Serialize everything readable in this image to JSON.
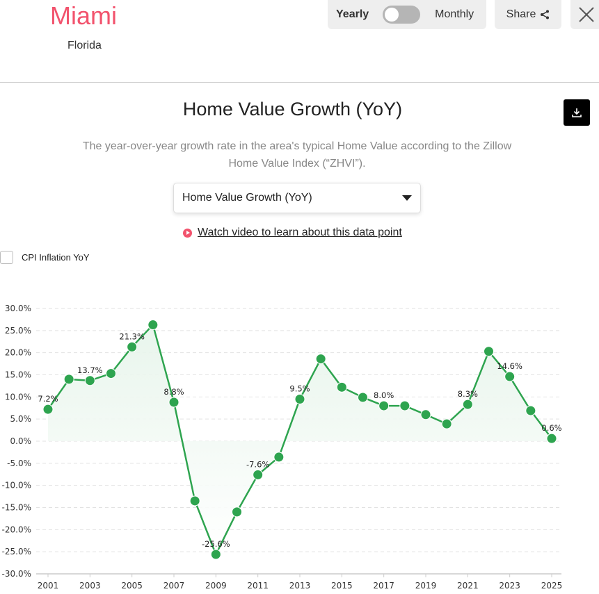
{
  "header": {
    "city": "Miami",
    "state": "Florida",
    "toggle_left": "Yearly",
    "toggle_right": "Monthly",
    "toggle_state": "yearly",
    "share_label": "Share",
    "close_icon": "close-icon",
    "share_icon": "share-icon"
  },
  "section": {
    "title": "Home Value Growth (YoY)",
    "description": "The year-over-year growth rate in the area's typical Home Value according to the Zillow Home Value Index (“ZHVI”).",
    "select_value": "Home Value Growth (YoY)",
    "video_link": "Watch video to learn about this data point",
    "cpi_label": "CPI Inflation YoY",
    "cpi_checked": false,
    "download_icon": "download-icon"
  },
  "colors": {
    "brand": "#f2536d",
    "line": "#2ea44f",
    "fill": "#e6f4ea"
  },
  "chart_data": {
    "type": "area",
    "x": [
      2001,
      2002,
      2003,
      2004,
      2005,
      2006,
      2007,
      2008,
      2009,
      2010,
      2011,
      2012,
      2013,
      2014,
      2015,
      2016,
      2017,
      2018,
      2019,
      2020,
      2021,
      2022,
      2023,
      2024,
      2025
    ],
    "values": [
      7.2,
      14.0,
      13.7,
      15.3,
      21.3,
      26.3,
      8.8,
      -13.5,
      -25.6,
      -16.0,
      -7.6,
      -3.6,
      9.5,
      18.6,
      12.2,
      9.9,
      8.0,
      8.0,
      6.0,
      3.9,
      8.3,
      20.3,
      14.6,
      6.9,
      0.6
    ],
    "data_labels": {
      "2001": "7.2%",
      "2003": "13.7%",
      "2005": "21.3%",
      "2007": "8.8%",
      "2009": "-25.6%",
      "2011": "-7.6%",
      "2013": "9.5%",
      "2017": "8.0%",
      "2021": "8.3%",
      "2023": "14.6%",
      "2025": "0.6%"
    },
    "x_ticks": [
      "2001",
      "2003",
      "2005",
      "2007",
      "2009",
      "2011",
      "2013",
      "2015",
      "2017",
      "2019",
      "2021",
      "2023",
      "2025"
    ],
    "y_ticks": [
      "30.0%",
      "25.0%",
      "20.0%",
      "15.0%",
      "10.0%",
      "5.0%",
      "0.0%",
      "-5.0%",
      "-10.0%",
      "-15.0%",
      "-20.0%",
      "-25.0%",
      "-30.0%"
    ],
    "ylim": [
      -30,
      30
    ],
    "grid": true,
    "legend": "none"
  }
}
